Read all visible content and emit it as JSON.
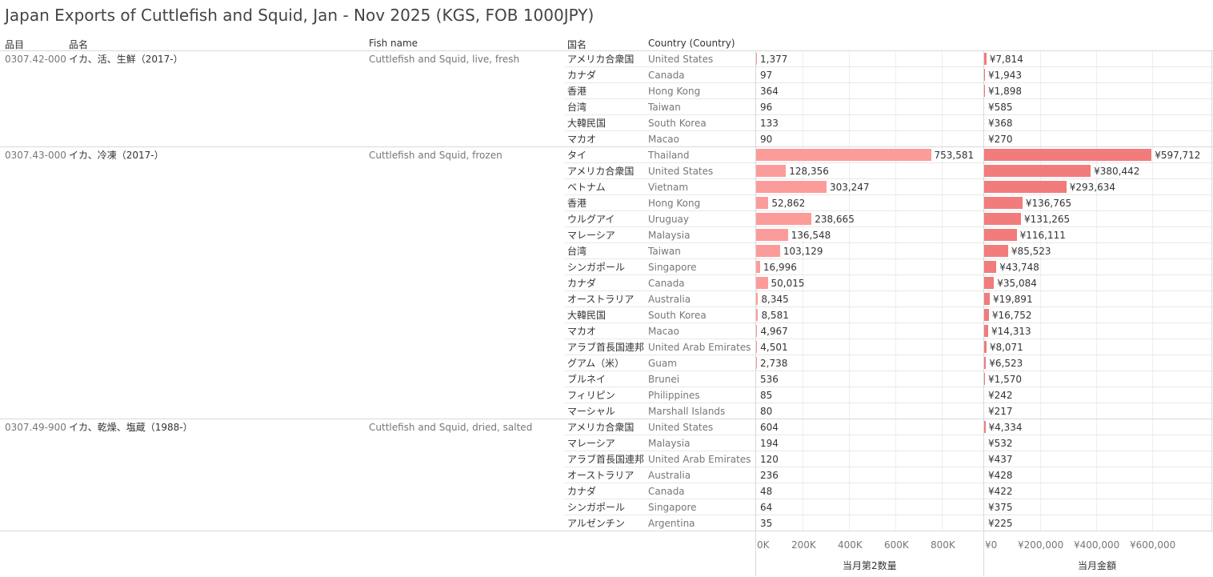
{
  "title": "Japan Exports of Cuttlefish and Squid, Jan - Nov 2025 (KGS, FOB 1000JPY)",
  "headers": {
    "code": "品目",
    "jp_name": "品名",
    "fish_name": "Fish name",
    "country_jp": "国名",
    "country_en": "Country (Country)"
  },
  "groups": [
    {
      "code": "0307.42-000",
      "jp_name": "イカ、活、生鮮（2017-）",
      "fish_name": "Cuttlefish and Squid, live, fresh",
      "rows": [
        {
          "jp": "アメリカ合衆国",
          "en": "United States",
          "qty": 1377,
          "qty_label": "1,377",
          "val": 7814,
          "val_label": "¥7,814"
        },
        {
          "jp": "カナダ",
          "en": "Canada",
          "qty": 97,
          "qty_label": "97",
          "val": 1943,
          "val_label": "¥1,943"
        },
        {
          "jp": "香港",
          "en": "Hong Kong",
          "qty": 364,
          "qty_label": "364",
          "val": 1898,
          "val_label": "¥1,898"
        },
        {
          "jp": "台湾",
          "en": "Taiwan",
          "qty": 96,
          "qty_label": "96",
          "val": 585,
          "val_label": "¥585"
        },
        {
          "jp": "大韓民国",
          "en": "South Korea",
          "qty": 133,
          "qty_label": "133",
          "val": 368,
          "val_label": "¥368"
        },
        {
          "jp": "マカオ",
          "en": "Macao",
          "qty": 90,
          "qty_label": "90",
          "val": 270,
          "val_label": "¥270"
        }
      ]
    },
    {
      "code": "0307.43-000",
      "jp_name": "イカ、冷凍（2017-）",
      "fish_name": "Cuttlefish and Squid, frozen",
      "rows": [
        {
          "jp": "タイ",
          "en": "Thailand",
          "qty": 753581,
          "qty_label": "753,581",
          "val": 597712,
          "val_label": "¥597,712"
        },
        {
          "jp": "アメリカ合衆国",
          "en": "United States",
          "qty": 128356,
          "qty_label": "128,356",
          "val": 380442,
          "val_label": "¥380,442"
        },
        {
          "jp": "ベトナム",
          "en": "Vietnam",
          "qty": 303247,
          "qty_label": "303,247",
          "val": 293634,
          "val_label": "¥293,634"
        },
        {
          "jp": "香港",
          "en": "Hong Kong",
          "qty": 52862,
          "qty_label": "52,862",
          "val": 136765,
          "val_label": "¥136,765"
        },
        {
          "jp": "ウルグアイ",
          "en": "Uruguay",
          "qty": 238665,
          "qty_label": "238,665",
          "val": 131265,
          "val_label": "¥131,265"
        },
        {
          "jp": "マレーシア",
          "en": "Malaysia",
          "qty": 136548,
          "qty_label": "136,548",
          "val": 116111,
          "val_label": "¥116,111"
        },
        {
          "jp": "台湾",
          "en": "Taiwan",
          "qty": 103129,
          "qty_label": "103,129",
          "val": 85523,
          "val_label": "¥85,523"
        },
        {
          "jp": "シンガポール",
          "en": "Singapore",
          "qty": 16996,
          "qty_label": "16,996",
          "val": 43748,
          "val_label": "¥43,748"
        },
        {
          "jp": "カナダ",
          "en": "Canada",
          "qty": 50015,
          "qty_label": "50,015",
          "val": 35084,
          "val_label": "¥35,084"
        },
        {
          "jp": "オーストラリア",
          "en": "Australia",
          "qty": 8345,
          "qty_label": "8,345",
          "val": 19891,
          "val_label": "¥19,891"
        },
        {
          "jp": "大韓民国",
          "en": "South Korea",
          "qty": 8581,
          "qty_label": "8,581",
          "val": 16752,
          "val_label": "¥16,752"
        },
        {
          "jp": "マカオ",
          "en": "Macao",
          "qty": 4967,
          "qty_label": "4,967",
          "val": 14313,
          "val_label": "¥14,313"
        },
        {
          "jp": "アラブ首長国連邦",
          "en": "United Arab Emirates",
          "qty": 4501,
          "qty_label": "4,501",
          "val": 8071,
          "val_label": "¥8,071"
        },
        {
          "jp": "グアム（米）",
          "en": "Guam",
          "qty": 2738,
          "qty_label": "2,738",
          "val": 6523,
          "val_label": "¥6,523"
        },
        {
          "jp": "ブルネイ",
          "en": "Brunei",
          "qty": 536,
          "qty_label": "536",
          "val": 1570,
          "val_label": "¥1,570"
        },
        {
          "jp": "フィリピン",
          "en": "Philippines",
          "qty": 85,
          "qty_label": "85",
          "val": 242,
          "val_label": "¥242"
        },
        {
          "jp": "マーシャル",
          "en": "Marshall Islands",
          "qty": 80,
          "qty_label": "80",
          "val": 217,
          "val_label": "¥217"
        }
      ]
    },
    {
      "code": "0307.49-900",
      "jp_name": "イカ、乾燥、塩蔵（1988-）",
      "fish_name": "Cuttlefish and Squid, dried, salted",
      "rows": [
        {
          "jp": "アメリカ合衆国",
          "en": "United States",
          "qty": 604,
          "qty_label": "604",
          "val": 4334,
          "val_label": "¥4,334"
        },
        {
          "jp": "マレーシア",
          "en": "Malaysia",
          "qty": 194,
          "qty_label": "194",
          "val": 532,
          "val_label": "¥532"
        },
        {
          "jp": "アラブ首長国連邦",
          "en": "United Arab Emirates",
          "qty": 120,
          "qty_label": "120",
          "val": 437,
          "val_label": "¥437"
        },
        {
          "jp": "オーストラリア",
          "en": "Australia",
          "qty": 236,
          "qty_label": "236",
          "val": 428,
          "val_label": "¥428"
        },
        {
          "jp": "カナダ",
          "en": "Canada",
          "qty": 48,
          "qty_label": "48",
          "val": 422,
          "val_label": "¥422"
        },
        {
          "jp": "シンガポール",
          "en": "Singapore",
          "qty": 64,
          "qty_label": "64",
          "val": 375,
          "val_label": "¥375"
        },
        {
          "jp": "アルゼンチン",
          "en": "Argentina",
          "qty": 35,
          "qty_label": "35",
          "val": 225,
          "val_label": "¥225"
        }
      ]
    }
  ],
  "chart_data": [
    {
      "type": "bar",
      "orientation": "horizontal",
      "xlabel": "当月第2数量",
      "xlim": [
        0,
        1000000
      ],
      "ticks": [
        0,
        200000,
        400000,
        600000,
        800000
      ],
      "tick_labels": [
        "0K",
        "200K",
        "400K",
        "600K",
        "800K"
      ],
      "color": "#fb9c9a"
    },
    {
      "type": "bar",
      "orientation": "horizontal",
      "xlabel": "当月金額",
      "xlim": [
        0,
        800000
      ],
      "ticks": [
        0,
        200000,
        400000,
        600000
      ],
      "tick_labels": [
        "¥0",
        "¥200,000",
        "¥400,000",
        "¥600,000"
      ],
      "color": "#f27b7b"
    }
  ]
}
